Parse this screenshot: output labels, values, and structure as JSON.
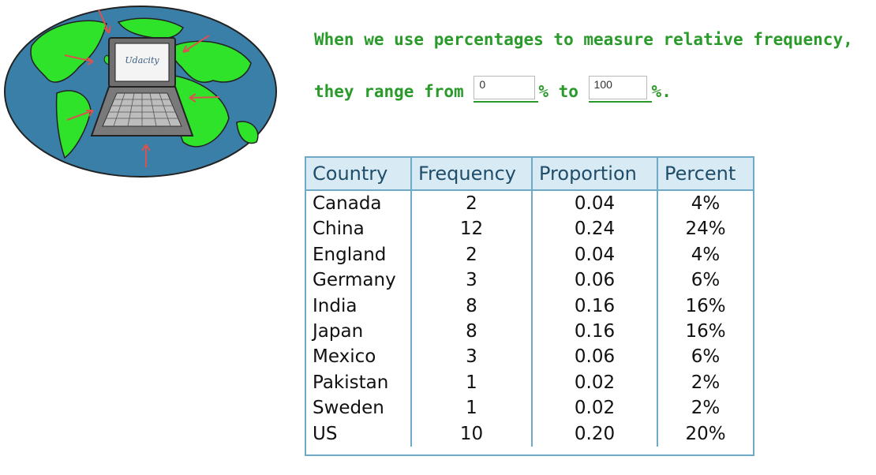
{
  "illustration": {
    "laptop_label": "Udacity",
    "icons": [
      "globe-icon",
      "laptop-icon"
    ],
    "colors": {
      "ocean": "#3a7fa7",
      "land": "#2fe22a",
      "arrow": "#d9534f"
    }
  },
  "question": {
    "line1": "When we use percentages to measure relative frequency,",
    "line2_prefix": "they range from",
    "line2_mid": "% to",
    "line2_suffix": "%.",
    "answer_min": "0",
    "answer_max": "100",
    "color": "#2a9a2a"
  },
  "table": {
    "headers": [
      "Country",
      "Frequency",
      "Proportion",
      "Percent"
    ],
    "rows": [
      [
        "Canada",
        "2",
        "0.04",
        "4%"
      ],
      [
        "China",
        "12",
        "0.24",
        "24%"
      ],
      [
        "England",
        "2",
        "0.04",
        "4%"
      ],
      [
        "Germany",
        "3",
        "0.06",
        "6%"
      ],
      [
        "India",
        "8",
        "0.16",
        "16%"
      ],
      [
        "Japan",
        "8",
        "0.16",
        "16%"
      ],
      [
        "Mexico",
        "3",
        "0.06",
        "6%"
      ],
      [
        "Pakistan",
        "1",
        "0.02",
        "2%"
      ],
      [
        "Sweden",
        "1",
        "0.02",
        "2%"
      ],
      [
        "US",
        "10",
        "0.20",
        "20%"
      ]
    ],
    "colors": {
      "border": "#6fa9c5",
      "header_bg": "#d8ebf5"
    }
  }
}
